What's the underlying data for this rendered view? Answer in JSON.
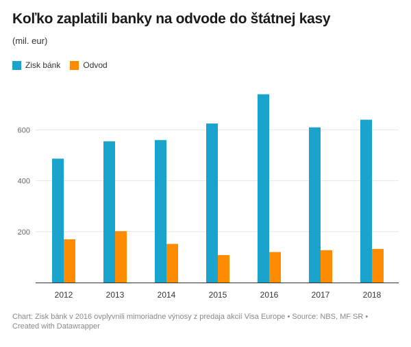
{
  "title": "Koľko zaplatili banky na odvode do štátnej kasy",
  "subtitle": "(mil. eur)",
  "footer": "Chart: Zisk bánk v 2016 ovplyvnili mimoriadne výnosy z predaja akcií Visa Europe • Source: NBS, MF SR • Created with Datawrapper",
  "colors": {
    "zisk": "#1aa3cc",
    "odvod": "#ff8c00",
    "grid": "#e6e6e6",
    "axis": "#333333"
  },
  "chart_data": {
    "type": "bar",
    "categories": [
      "2012",
      "2013",
      "2014",
      "2015",
      "2016",
      "2017",
      "2018"
    ],
    "series": [
      {
        "name": "Zisk bánk",
        "values": [
          487,
          555,
          560,
          625,
          740,
          610,
          640
        ]
      },
      {
        "name": "Odvod",
        "values": [
          170,
          202,
          152,
          108,
          120,
          127,
          132
        ]
      }
    ],
    "y_ticks": [
      "200",
      "400",
      "600"
    ],
    "ylim": [
      0,
      750
    ],
    "grid": true,
    "legend": "top-left"
  }
}
